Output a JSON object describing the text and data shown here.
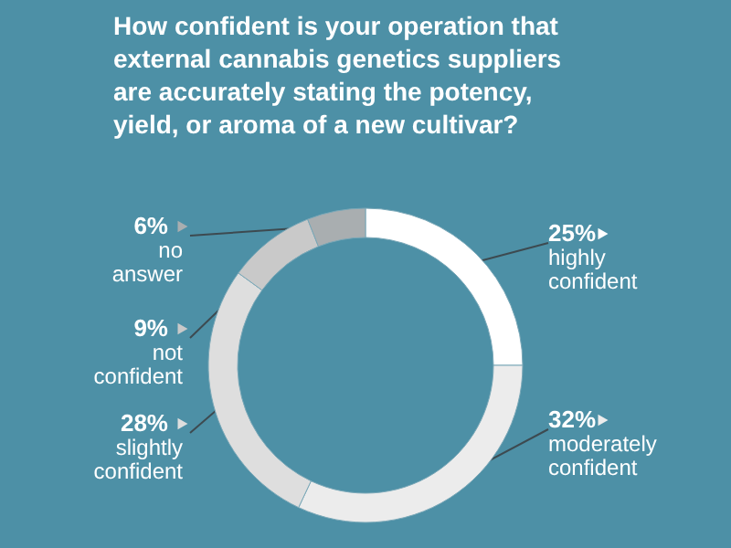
{
  "chart_data": {
    "type": "donut",
    "title": "How confident is your operation that\nexternal cannabis genetics suppliers\nare accurately stating the potency,\nyield, or aroma of a new cultivar?",
    "categories": [
      "highly confident",
      "moderately confident",
      "slightly confident",
      "not confident",
      "no answer"
    ],
    "values": [
      25,
      32,
      28,
      9,
      6
    ],
    "colors": [
      "#ffffff",
      "#ececec",
      "#dedede",
      "#c9c9c9",
      "#a9aeb0"
    ],
    "value_labels": [
      "25%",
      "32%",
      "28%",
      "9%",
      "6%"
    ],
    "legend": "left"
  }
}
